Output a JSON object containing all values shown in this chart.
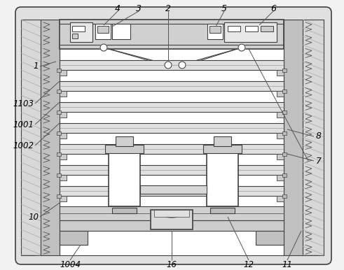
{
  "bg_color": "#f2f2f2",
  "line_color": "#404040",
  "white": "#ffffff",
  "light_gray": "#d8d8d8",
  "mid_gray": "#b0b0b0",
  "dark_gray": "#888888",
  "hatch_color": "#909090"
}
